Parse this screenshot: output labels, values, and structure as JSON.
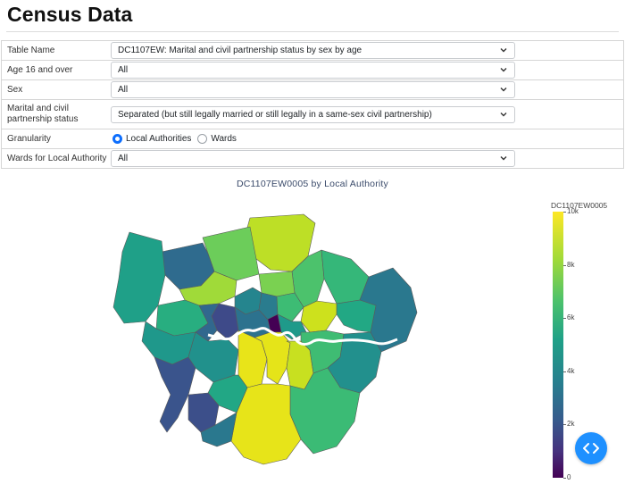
{
  "page": {
    "title": "Census Data"
  },
  "form": {
    "table_name": {
      "label": "Table Name",
      "value": "DC1107EW: Marital and civil partnership status by sex by age"
    },
    "age": {
      "label": "Age 16 and over",
      "value": "All"
    },
    "sex": {
      "label": "Sex",
      "value": "All"
    },
    "marital": {
      "label": "Marital and civil partnership status",
      "value": "Separated (but still legally married or still legally in a same-sex civil partnership)"
    },
    "granularity": {
      "label": "Granularity",
      "options": [
        "Local Authorities",
        "Wards"
      ],
      "selected": "Local Authorities"
    },
    "wards": {
      "label": "Wards for Local Authority",
      "value": "All"
    }
  },
  "chart_data": {
    "type": "choropleth",
    "title": "DC1107EW0005 by Local Authority",
    "colorbar": {
      "title": "DC1107EW0005",
      "ticks": [
        "0",
        "2k",
        "4k",
        "6k",
        "8k",
        "10k"
      ],
      "range": [
        0,
        10000
      ],
      "colorscale": "viridis"
    }
  },
  "colors": {
    "accent": "#0d6efd",
    "fab": "#1e90ff",
    "thames": "#ffffff"
  },
  "icons": {
    "select_chevron": "chevron-down-icon",
    "fab": "code-brackets-icon"
  }
}
